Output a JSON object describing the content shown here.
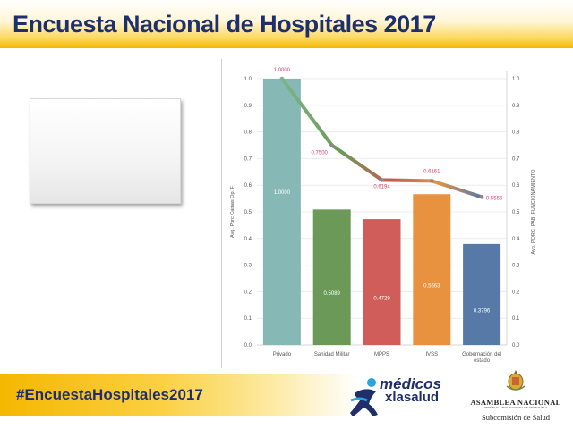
{
  "header": {
    "title": "Encuesta Nacional de Hospitales 2017"
  },
  "footer": {
    "hashtag": "#EncuestaHospitales2017",
    "logo_medicos_line1": "médicos",
    "logo_medicos_line2": "xlasalud",
    "asamblea_name": "ASAMBLEA NACIONAL",
    "asamblea_sub": "REPÚBLICA BOLIVARIANA DE VENEZUELA",
    "subcomision": "Subcomisión de Salud"
  },
  "chart_data": {
    "type": "bar",
    "categories": [
      "Privado",
      "Sanidad Militar",
      "MPPS",
      "IVSS",
      "Gobernación del estado"
    ],
    "series": [
      {
        "name": "Avg. Porc Camas Op. F",
        "type": "bar",
        "values": [
          1.0,
          0.5089,
          0.4729,
          0.5663,
          0.3796
        ],
        "labels": [
          "1.0000",
          "0.5089",
          "0.4729",
          "0.5663",
          "0.3796"
        ],
        "colors": [
          "#86b8b5",
          "#6b9a58",
          "#d15d5a",
          "#e8913e",
          "#5779a8"
        ]
      },
      {
        "name": "Avg. PORC_PAB_FUNCIONAMIENTO",
        "type": "line",
        "values": [
          1.0,
          0.75,
          0.6194,
          0.6161,
          0.5556
        ],
        "labels": [
          "1.0000",
          "0.7500",
          "0.6194",
          "0.6161",
          "0.5556"
        ],
        "label_color": "#e0406a"
      }
    ],
    "ylabel_left": "Avg. Porc Camas Op. F",
    "ylabel_right": "Avg. PORC_PAB_FUNCIONAMIENTO",
    "yticks": [
      "1.0",
      "0.9",
      "0.8",
      "0.7",
      "0.6",
      "0.5",
      "0.4",
      "0.3",
      "0.2",
      "0.1",
      "0.0"
    ],
    "ylim": [
      0,
      1
    ],
    "grid": true
  }
}
